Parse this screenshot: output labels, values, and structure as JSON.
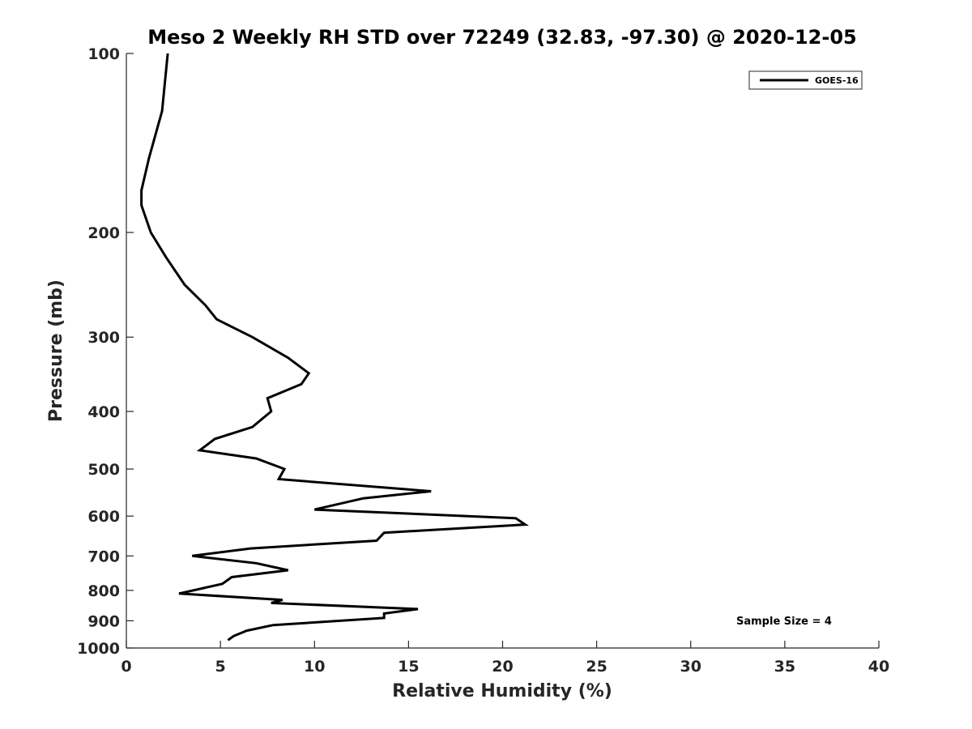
{
  "chart_data": {
    "type": "line",
    "title": "Meso 2 Weekly RH STD over 72249 (32.83, -97.30) @ 2020-12-05",
    "xlabel": "Relative Humidity (%)",
    "ylabel": "Pressure (mb)",
    "xlim": [
      0,
      40
    ],
    "ylim": [
      1000,
      100
    ],
    "y_scale": "log",
    "y_reversed": true,
    "grid": false,
    "legend_position": "top-right",
    "x_ticks": [
      0,
      5,
      10,
      15,
      20,
      25,
      30,
      35,
      40
    ],
    "y_ticks": [
      100,
      200,
      300,
      400,
      500,
      600,
      700,
      800,
      900,
      1000
    ],
    "series": [
      {
        "name": "GOES-16",
        "color": "#000000",
        "points": [
          [
            2.2,
            100
          ],
          [
            1.9,
            125
          ],
          [
            1.2,
            150
          ],
          [
            0.8,
            170
          ],
          [
            0.8,
            180
          ],
          [
            1.3,
            200
          ],
          [
            2.1,
            220
          ],
          [
            3.1,
            245
          ],
          [
            4.2,
            265
          ],
          [
            4.8,
            280
          ],
          [
            6.7,
            300
          ],
          [
            8.6,
            325
          ],
          [
            9.7,
            345
          ],
          [
            9.3,
            360
          ],
          [
            7.5,
            380
          ],
          [
            7.7,
            400
          ],
          [
            6.7,
            425
          ],
          [
            4.7,
            445
          ],
          [
            3.9,
            465
          ],
          [
            6.9,
            480
          ],
          [
            8.4,
            500
          ],
          [
            8.1,
            520
          ],
          [
            16.2,
            545
          ],
          [
            12.6,
            560
          ],
          [
            10.0,
            585
          ],
          [
            20.7,
            605
          ],
          [
            21.2,
            620
          ],
          [
            13.7,
            640
          ],
          [
            13.3,
            660
          ],
          [
            6.6,
            680
          ],
          [
            3.5,
            700
          ],
          [
            6.9,
            720
          ],
          [
            8.6,
            740
          ],
          [
            5.6,
            760
          ],
          [
            5.1,
            780
          ],
          [
            2.8,
            810
          ],
          [
            8.3,
            830
          ],
          [
            7.7,
            840
          ],
          [
            15.5,
            860
          ],
          [
            13.7,
            875
          ],
          [
            13.7,
            890
          ],
          [
            7.8,
            915
          ],
          [
            6.4,
            935
          ],
          [
            5.7,
            955
          ],
          [
            5.4,
            970
          ]
        ]
      }
    ],
    "annotations": [
      "Sample Size = 4"
    ]
  },
  "colors": {
    "background": "#ffffff",
    "axis": "#262626",
    "line": "#000000"
  }
}
